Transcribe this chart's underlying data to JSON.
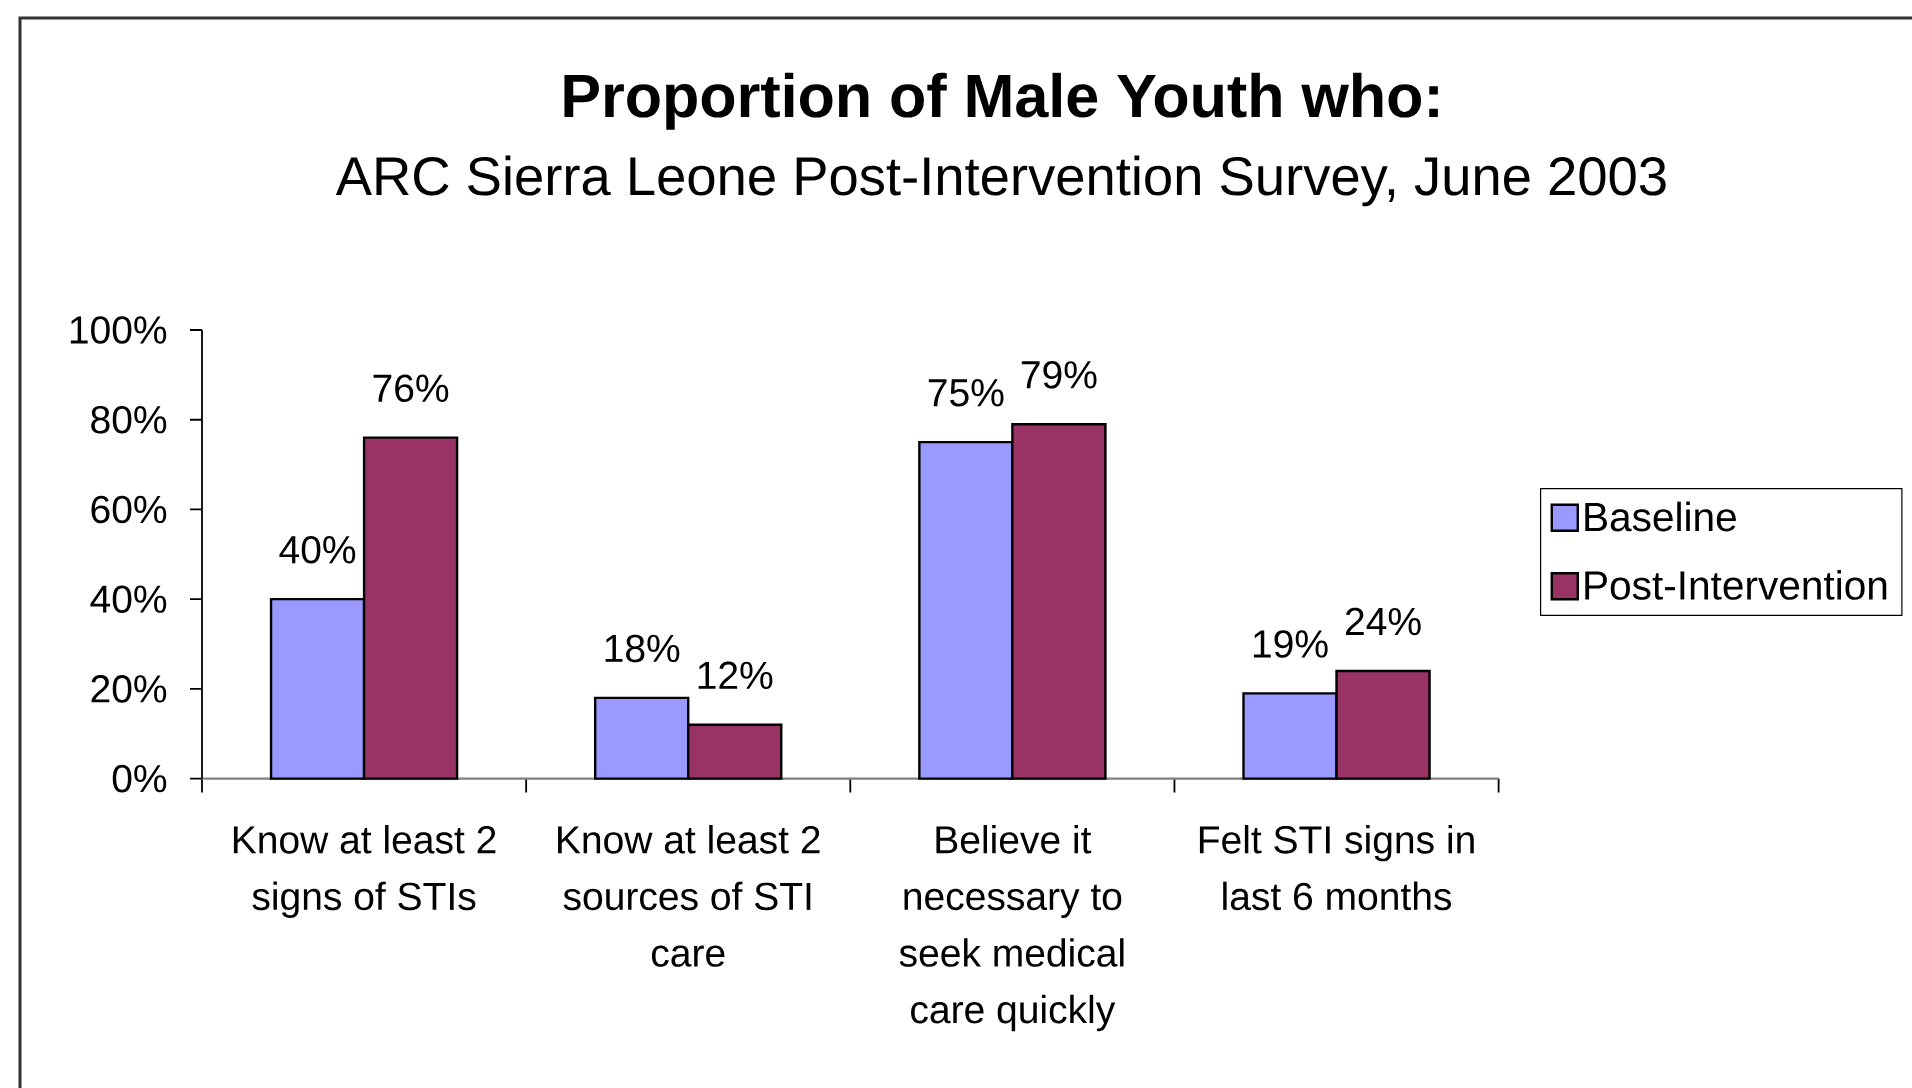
{
  "chart_data": {
    "type": "bar",
    "title": "Proportion of Male Youth who:",
    "subtitle": "ARC Sierra Leone Post-Intervention Survey, June 2003",
    "categories": [
      "Know at least 2 signs of STIs",
      "Know at least 2 sources of STI care",
      "Believe it necessary to seek medical care quickly",
      "Felt STI signs in last 6 months"
    ],
    "series": [
      {
        "name": "Baseline",
        "color": "#9999ff",
        "values": [
          40,
          18,
          75,
          19
        ],
        "value_labels": [
          "40%",
          "18%",
          "75%",
          "19%"
        ]
      },
      {
        "name": "Post-Intervention",
        "color": "#993366",
        "values": [
          76,
          12,
          79,
          24
        ],
        "value_labels": [
          "76%",
          "12%",
          "79%",
          "24%"
        ]
      }
    ],
    "ylim": [
      0,
      100
    ],
    "yticks": [
      {
        "value": 0,
        "label": "0%"
      },
      {
        "value": 20,
        "label": "20%"
      },
      {
        "value": 40,
        "label": "40%"
      },
      {
        "value": 60,
        "label": "60%"
      },
      {
        "value": 80,
        "label": "80%"
      },
      {
        "value": 100,
        "label": "100%"
      }
    ],
    "legend": "right"
  }
}
